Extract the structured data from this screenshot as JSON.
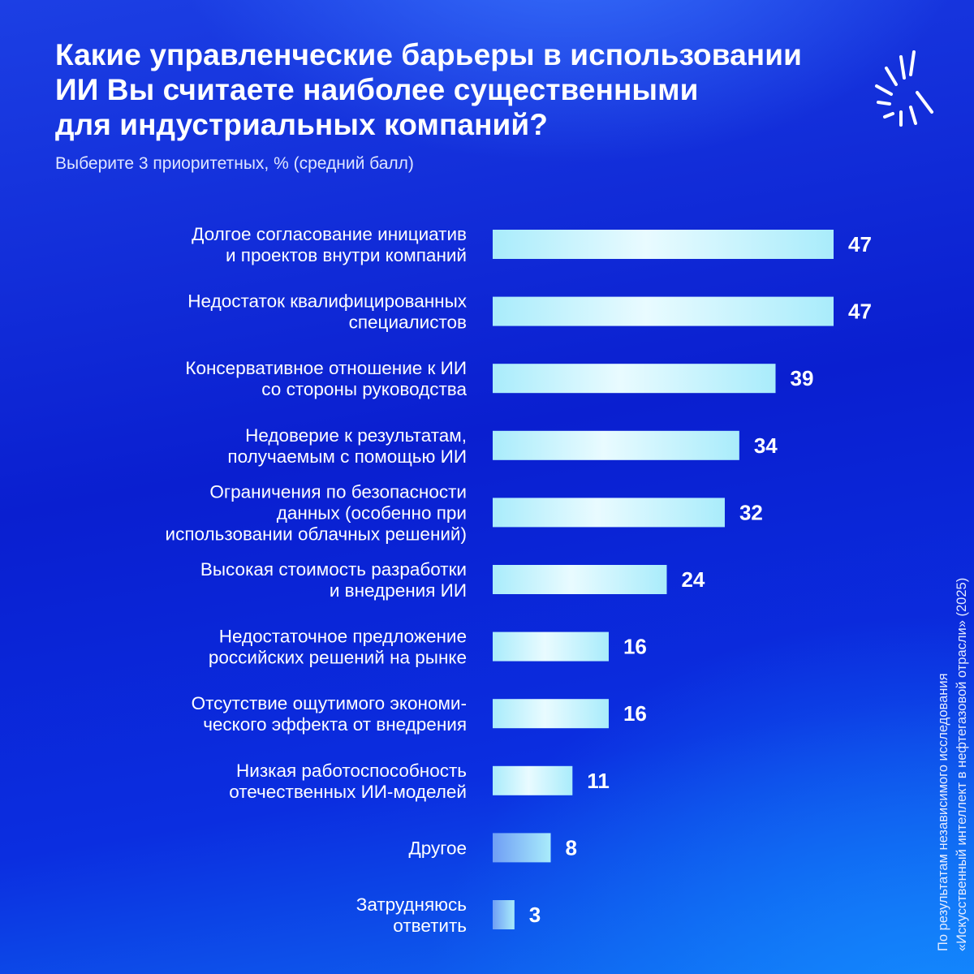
{
  "header": {
    "title_lines": [
      "Какие управленческие барьеры в использовании",
      "ИИ Вы считаете наиболее существенными",
      "для индустриальных компаний?"
    ],
    "subtitle": "Выберите 3 приоритетных, % (средний балл)"
  },
  "logo": {
    "icon": "starburst-logo-icon"
  },
  "source_note": {
    "lines": [
      "По результатам независимого исследования",
      "«Искусственный интеллект в нефтегазовой отрасли» (2025)"
    ]
  },
  "colors": {
    "bar_light": "#e9fbff",
    "bar_mid": "#a9ecfb",
    "bar_dim": "#6f9ef5"
  },
  "chart_data": {
    "type": "bar",
    "orientation": "horizontal",
    "unit": "%",
    "xlim": [
      0,
      47
    ],
    "grid": false,
    "legend": "none",
    "categories": [
      [
        "Долгое согласование инициатив",
        "и проектов внутри компаний"
      ],
      [
        "Недостаток квалифицированных",
        "специалистов"
      ],
      [
        "Консервативное отношение к ИИ",
        "со стороны руководства"
      ],
      [
        "Недоверие к результатам,",
        "получаемым с помощью ИИ"
      ],
      [
        "Ограничения по безопасности",
        "данных (особенно при",
        "использовании облачных решений)"
      ],
      [
        "Высокая стоимость разработки",
        "и внедрения ИИ"
      ],
      [
        "Недостаточное предложение",
        "российских решений на рынке"
      ],
      [
        "Отсутствие ощутимого экономи-",
        "ческого эффекта от внедрения"
      ],
      [
        "Низкая работоспособность",
        "отечественных ИИ-моделей"
      ],
      [
        "Другое"
      ],
      [
        "Затрудняюсь",
        "ответить"
      ]
    ],
    "values": [
      47,
      47,
      39,
      34,
      32,
      24,
      16,
      16,
      11,
      8,
      3
    ],
    "data_labels": [
      "47",
      "47",
      "39",
      "34",
      "32",
      "24",
      "16",
      "16",
      "11",
      "8",
      "3"
    ]
  }
}
